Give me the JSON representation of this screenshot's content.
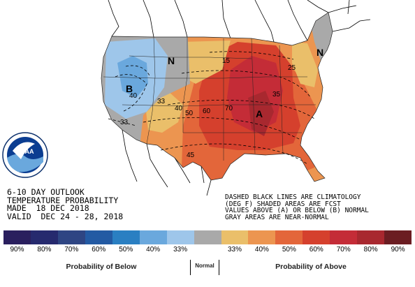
{
  "title_block": {
    "line1": "6-10 DAY OUTLOOK",
    "line2": "TEMPERATURE PROBABILITY",
    "line3": "MADE  18 DEC 2018",
    "line4": "VALID  DEC 24 - 28, 2018"
  },
  "notes": {
    "line1": "DASHED BLACK LINES ARE CLIMATOLOGY",
    "line2": "(DEG F) SHADED AREAS ARE FCST",
    "line3": "VALUES ABOVE (A) OR BELOW (B) NORMAL",
    "line4": "GRAY AREAS ARE NEAR-NORMAL"
  },
  "map_labels": {
    "below": "B",
    "normal_west": "N",
    "normal_east": "N",
    "above": "A"
  },
  "contour_labels": [
    "15",
    "25",
    "33",
    "35",
    "40",
    "40",
    "45",
    "50",
    "60",
    "70",
    "33"
  ],
  "legend": {
    "colors": [
      "#2a1f5e",
      "#262a6e",
      "#2e4583",
      "#235aa3",
      "#2a7fc2",
      "#6aa8dd",
      "#9ec6ea",
      "#a9a9a9",
      "#eabf6a",
      "#ec9550",
      "#e3663a",
      "#d5402d",
      "#c42c37",
      "#a8282f",
      "#6b1d22"
    ],
    "labels": [
      "90%",
      "80%",
      "70%",
      "60%",
      "50%",
      "40%",
      "33%",
      "",
      "33%",
      "40%",
      "50%",
      "60%",
      "70%",
      "80%",
      "90%"
    ],
    "below_title": "Probability of Below",
    "normal_title": "Normal",
    "above_title": "Probability of Above"
  },
  "logo": {
    "name": "NOAA",
    "ring_text": "NATIONAL OCEANIC AND ATMOSPHERIC ADMINISTRATION • U.S. DEPARTMENT OF COMMERCE"
  }
}
